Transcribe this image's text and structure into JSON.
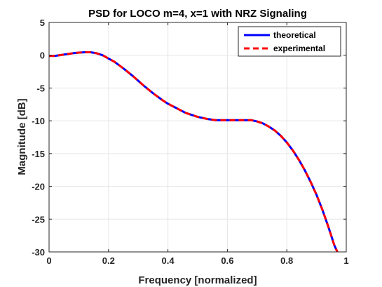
{
  "chart_data": {
    "type": "line",
    "title": "PSD for LOCO m=4, x=1 with NRZ Signaling",
    "xlabel": "Frequency [normalized]",
    "ylabel": "Magnitude [dB]",
    "xlim": [
      0,
      1
    ],
    "ylim": [
      -30,
      5
    ],
    "xticks": [
      "0",
      "0.2",
      "0.4",
      "0.6",
      "0.8",
      "1"
    ],
    "yticks": [
      "5",
      "0",
      "-5",
      "-10",
      "-15",
      "-20",
      "-25",
      "-30"
    ],
    "grid": true,
    "legend_position": "top-right",
    "x": [
      0,
      0.02,
      0.05,
      0.08,
      0.1,
      0.12,
      0.14,
      0.16,
      0.18,
      0.2,
      0.22,
      0.25,
      0.28,
      0.3,
      0.32,
      0.35,
      0.38,
      0.4,
      0.43,
      0.46,
      0.5,
      0.53,
      0.56,
      0.6,
      0.63,
      0.66,
      0.68,
      0.7,
      0.72,
      0.74,
      0.76,
      0.78,
      0.8,
      0.82,
      0.84,
      0.86,
      0.88,
      0.9,
      0.92,
      0.94,
      0.96,
      0.97
    ],
    "series": [
      {
        "name": "theoretical",
        "color": "#0000ff",
        "style": "solid",
        "values": [
          -0.1,
          -0.1,
          0.1,
          0.3,
          0.4,
          0.45,
          0.45,
          0.3,
          0.0,
          -0.5,
          -1.0,
          -2.0,
          -3.1,
          -3.9,
          -4.7,
          -5.8,
          -6.8,
          -7.4,
          -8.1,
          -8.8,
          -9.4,
          -9.7,
          -9.9,
          -9.9,
          -9.9,
          -9.9,
          -9.9,
          -10.1,
          -10.4,
          -10.9,
          -11.5,
          -12.3,
          -13.3,
          -14.5,
          -15.9,
          -17.5,
          -19.3,
          -21.3,
          -23.6,
          -26.2,
          -29.0,
          -30.0
        ]
      },
      {
        "name": "experimental",
        "color": "#ff0000",
        "style": "dashed",
        "values": [
          -0.1,
          -0.1,
          0.1,
          0.3,
          0.4,
          0.45,
          0.45,
          0.3,
          0.0,
          -0.5,
          -1.0,
          -2.0,
          -3.1,
          -3.9,
          -4.7,
          -5.8,
          -6.8,
          -7.4,
          -8.1,
          -8.8,
          -9.4,
          -9.7,
          -9.9,
          -9.9,
          -9.9,
          -9.9,
          -9.9,
          -10.1,
          -10.4,
          -10.9,
          -11.5,
          -12.3,
          -13.3,
          -14.5,
          -15.9,
          -17.5,
          -19.3,
          -21.3,
          -23.6,
          -26.2,
          -29.0,
          -30.0
        ]
      }
    ]
  }
}
